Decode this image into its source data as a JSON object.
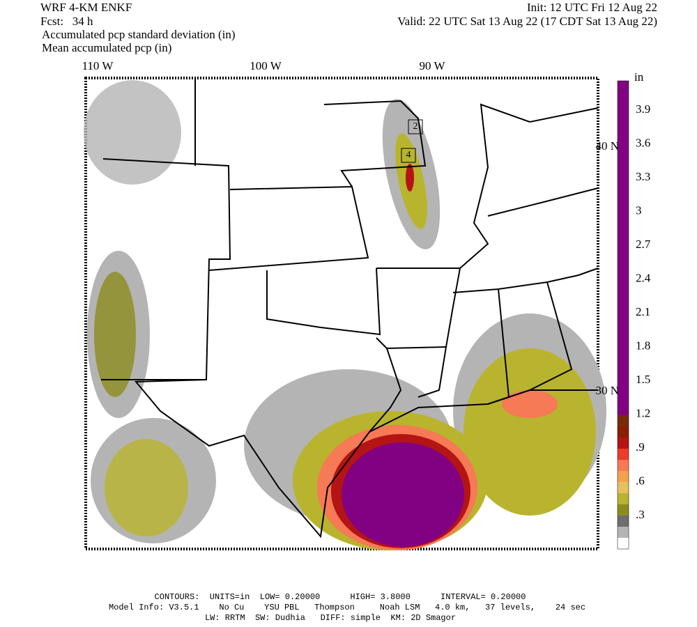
{
  "header": {
    "model": "WRF 4-KM ENKF",
    "forecast": "Fcst:   34 h",
    "init": "Init: 12 UTC Fri 12 Aug 22",
    "valid": "Valid: 22 UTC Sat 13 Aug 22 (17 CDT Sat 13 Aug 22)",
    "field_1": "Accumulated pcp standard deviation (in)",
    "field_2": "Mean accumulated pcp (in)"
  },
  "longitude_labels": [
    "110 W",
    "100 W",
    "90 W"
  ],
  "latitude_labels": [
    "40 N",
    "30 N"
  ],
  "box_labels": [
    "2",
    "4"
  ],
  "colorbar": {
    "unit": "in",
    "labels": [
      "3.9",
      "3.6",
      "3.3",
      "3",
      "2.7",
      "2.4",
      "2.1",
      "1.8",
      "1.5",
      "1.2",
      ".9",
      ".6",
      ".3"
    ],
    "colors": [
      "#ffffff",
      "#b4b4b4",
      "#6e6e6e",
      "#8c8c1e",
      "#b9b42d",
      "#e6c060",
      "#f5a050",
      "#f57a55",
      "#eb3c2d",
      "#b41414",
      "#8c1e00",
      "#7a2a0a",
      "#820082"
    ]
  },
  "footer": [
    "CONTOURS:  UNITS=in  LOW= 0.20000      HIGH= 3.8000      INTERVAL= 0.20000",
    "Model Info: V3.5.1    No Cu    YSU PBL   Thompson     Noah LSM   4.0 km,   37 levels,    24 sec",
    "LW: RRTM  SW: Dudhia   DIFF: simple  KM: 2D Smagor"
  ]
}
